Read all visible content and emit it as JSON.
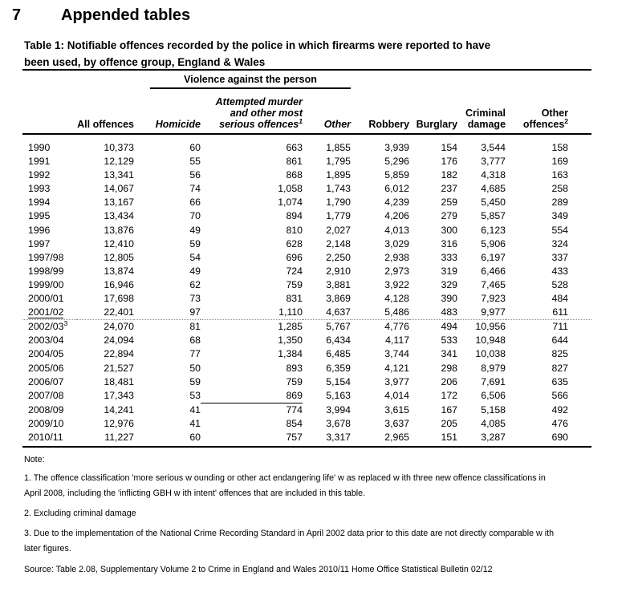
{
  "page": {
    "section_number": "7",
    "section_title": "Appended tables",
    "table_title_line1": "Table 1: Notifiable offences recorded by the police in which firearms were reported to have",
    "table_title_line2": "been used, by offence group, England & Wales"
  },
  "table": {
    "group_header": "Violence against the person",
    "columns": {
      "all_offences": "All offences",
      "homicide": "Homicide",
      "attempted_lines": [
        "Attempted murder",
        "and other most",
        "serious offences"
      ],
      "attempted_sup": "1",
      "other": "Other",
      "robbery": "Robbery",
      "burglary": "Burglary",
      "criminal_damage_lines": [
        "Criminal",
        "damage"
      ],
      "other_offences_lines": [
        "Other",
        "offences"
      ],
      "other_offences_sup": "2"
    },
    "column_keys": [
      "all-offences",
      "homicide",
      "attempted-murder",
      "other-violence",
      "robbery",
      "burglary",
      "criminal-damage",
      "other-offences"
    ],
    "rows": [
      {
        "year": "1990",
        "values": [
          "10,373",
          "60",
          "663",
          "1,855",
          "3,939",
          "154",
          "3,544",
          "158"
        ]
      },
      {
        "year": "1991",
        "values": [
          "12,129",
          "55",
          "861",
          "1,795",
          "5,296",
          "176",
          "3,777",
          "169"
        ]
      },
      {
        "year": "1992",
        "values": [
          "13,341",
          "56",
          "868",
          "1,895",
          "5,859",
          "182",
          "4,318",
          "163"
        ]
      },
      {
        "year": "1993",
        "values": [
          "14,067",
          "74",
          "1,058",
          "1,743",
          "6,012",
          "237",
          "4,685",
          "258"
        ]
      },
      {
        "year": "1994",
        "values": [
          "13,167",
          "66",
          "1,074",
          "1,790",
          "4,239",
          "259",
          "5,450",
          "289"
        ]
      },
      {
        "year": "1995",
        "values": [
          "13,434",
          "70",
          "894",
          "1,779",
          "4,206",
          "279",
          "5,857",
          "349"
        ]
      },
      {
        "year": "1996",
        "values": [
          "13,876",
          "49",
          "810",
          "2,027",
          "4,013",
          "300",
          "6,123",
          "554"
        ]
      },
      {
        "year": "1997",
        "values": [
          "12,410",
          "59",
          "628",
          "2,148",
          "3,029",
          "316",
          "5,906",
          "324"
        ]
      },
      {
        "year": "1997/98",
        "values": [
          "12,805",
          "54",
          "696",
          "2,250",
          "2,938",
          "333",
          "6,197",
          "337"
        ]
      },
      {
        "year": "1998/99",
        "values": [
          "13,874",
          "49",
          "724",
          "2,910",
          "2,973",
          "319",
          "6,466",
          "433"
        ]
      },
      {
        "year": "1999/00",
        "values": [
          "16,946",
          "62",
          "759",
          "3,881",
          "3,922",
          "329",
          "7,465",
          "528"
        ]
      },
      {
        "year": "2000/01",
        "values": [
          "17,698",
          "73",
          "831",
          "3,869",
          "4,128",
          "390",
          "7,923",
          "484"
        ]
      },
      {
        "year": "2001/02",
        "values": [
          "22,401",
          "97",
          "1,110",
          "4,637",
          "5,486",
          "483",
          "9,977",
          "611"
        ]
      },
      {
        "year": "2002/03",
        "year_sup": "3",
        "values": [
          "24,070",
          "81",
          "1,285",
          "5,767",
          "4,776",
          "494",
          "10,956",
          "711"
        ]
      },
      {
        "year": "2003/04",
        "values": [
          "24,094",
          "68",
          "1,350",
          "6,434",
          "4,117",
          "533",
          "10,948",
          "644"
        ]
      },
      {
        "year": "2004/05",
        "values": [
          "22,894",
          "77",
          "1,384",
          "6,485",
          "3,744",
          "341",
          "10,038",
          "825"
        ]
      },
      {
        "year": "2005/06",
        "values": [
          "21,527",
          "50",
          "893",
          "6,359",
          "4,121",
          "298",
          "8,979",
          "827"
        ]
      },
      {
        "year": "2006/07",
        "values": [
          "18,481",
          "59",
          "759",
          "5,154",
          "3,977",
          "206",
          "7,691",
          "635"
        ]
      },
      {
        "year": "2007/08",
        "values": [
          "17,343",
          "53",
          "869",
          "5,163",
          "4,014",
          "172",
          "6,506",
          "566"
        ]
      },
      {
        "year": "2008/09",
        "values": [
          "14,241",
          "41",
          "774",
          "3,994",
          "3,615",
          "167",
          "5,158",
          "492"
        ]
      },
      {
        "year": "2009/10",
        "values": [
          "12,976",
          "41",
          "854",
          "3,678",
          "3,637",
          "205",
          "4,085",
          "476"
        ]
      },
      {
        "year": "2010/11",
        "values": [
          "11,227",
          "60",
          "757",
          "3,317",
          "2,965",
          "151",
          "3,287",
          "690"
        ]
      }
    ]
  },
  "notes": {
    "label": "Note:",
    "items": [
      {
        "lines": [
          "1. The offence classification 'more serious w ounding or other act endangering life' w as replaced w ith three new  offence classifications in",
          "April 2008, including the 'inflicting GBH w ith intent' offences that are included in this table."
        ]
      },
      {
        "lines": [
          "2. Excluding criminal damage"
        ]
      },
      {
        "lines": [
          "3. Due to the implementation of the National Crime Recording Standard in April 2002 data prior to this date are not directly comparable w ith",
          "later figures."
        ]
      }
    ],
    "source": "Source: Table 2.08, Supplementary Volume 2 to Crime in England and Wales 2010/11 Home Office Statistical Bulletin 02/12"
  }
}
